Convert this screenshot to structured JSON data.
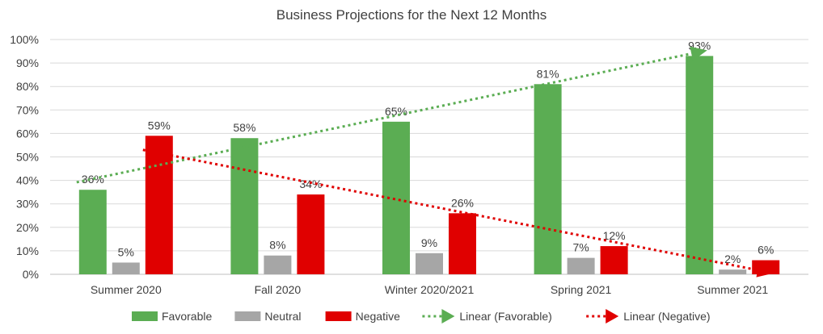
{
  "chart_data": {
    "type": "bar",
    "title": "Business Projections for the Next 12 Months",
    "xlabel": "",
    "ylabel": "",
    "ylim": [
      0,
      100
    ],
    "y_ticks": [
      "0%",
      "10%",
      "20%",
      "30%",
      "40%",
      "50%",
      "60%",
      "70%",
      "80%",
      "90%",
      "100%"
    ],
    "categories": [
      "Summer 2020",
      "Fall 2020",
      "Winter 2020/2021",
      "Spring 2021",
      "Summer 2021"
    ],
    "series": [
      {
        "name": "Favorable",
        "color": "#5BAD53",
        "values": [
          36,
          58,
          65,
          81,
          93
        ],
        "labels": [
          "36%",
          "58%",
          "65%",
          "81%",
          "93%"
        ]
      },
      {
        "name": "Neutral",
        "color": "#A6A6A6",
        "values": [
          5,
          8,
          9,
          7,
          2
        ],
        "labels": [
          "5%",
          "8%",
          "9%",
          "7%",
          "2%"
        ]
      },
      {
        "name": "Negative",
        "color": "#E00000",
        "values": [
          59,
          34,
          26,
          12,
          6
        ],
        "labels": [
          "59%",
          "34%",
          "26%",
          "12%",
          "6%"
        ]
      }
    ],
    "trendlines": [
      {
        "name": "Linear (Favorable)",
        "series": "Favorable",
        "color": "#5BAD53",
        "style": "dotted-arrow"
      },
      {
        "name": "Linear (Negative)",
        "series": "Negative",
        "color": "#E00000",
        "style": "dotted-arrow"
      }
    ],
    "grid": true,
    "legend": "bottom"
  }
}
